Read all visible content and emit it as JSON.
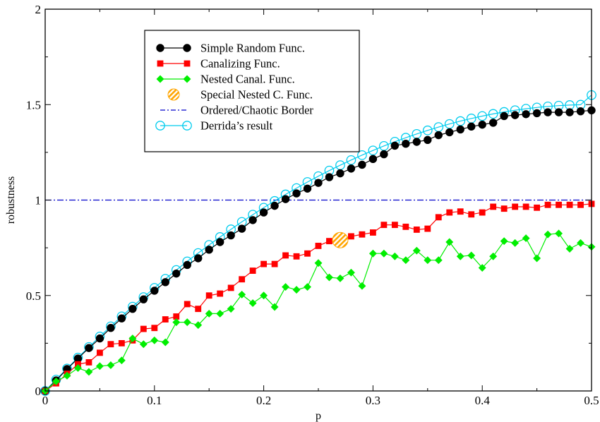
{
  "chart_data": {
    "type": "line",
    "title": "",
    "xlabel": "p",
    "ylabel": "robustness",
    "xlim": [
      0,
      0.5
    ],
    "ylim": [
      0,
      2
    ],
    "grid": false,
    "legend_position": "top-left",
    "x_ticks": [
      0,
      0.1,
      0.2,
      0.3,
      0.4,
      0.5
    ],
    "x_tick_labels": [
      "0",
      "0.1",
      "0.2",
      "0.3",
      "0.4",
      "0.5"
    ],
    "y_ticks": [
      0,
      0.5,
      1,
      1.5,
      2
    ],
    "y_tick_labels": [
      "0",
      "0.5",
      "1",
      "1.5",
      "2"
    ],
    "series": [
      {
        "name": "Simple Random Func.",
        "marker": "filled-circle",
        "color": "#000000",
        "x": [
          0,
          0.01,
          0.02,
          0.03,
          0.04,
          0.05,
          0.06,
          0.07,
          0.08,
          0.09,
          0.1,
          0.11,
          0.12,
          0.13,
          0.14,
          0.15,
          0.16,
          0.17,
          0.18,
          0.19,
          0.2,
          0.21,
          0.22,
          0.23,
          0.24,
          0.25,
          0.26,
          0.27,
          0.28,
          0.29,
          0.3,
          0.31,
          0.32,
          0.33,
          0.34,
          0.35,
          0.36,
          0.37,
          0.38,
          0.39,
          0.4,
          0.41,
          0.42,
          0.43,
          0.44,
          0.45,
          0.46,
          0.47,
          0.48,
          0.49,
          0.5
        ],
        "y": [
          0,
          0.055,
          0.115,
          0.17,
          0.225,
          0.275,
          0.33,
          0.38,
          0.43,
          0.48,
          0.525,
          0.57,
          0.615,
          0.66,
          0.695,
          0.74,
          0.78,
          0.815,
          0.85,
          0.895,
          0.935,
          0.97,
          1.005,
          1.035,
          1.06,
          1.09,
          1.12,
          1.14,
          1.165,
          1.185,
          1.215,
          1.24,
          1.285,
          1.295,
          1.305,
          1.315,
          1.34,
          1.355,
          1.37,
          1.385,
          1.395,
          1.405,
          1.44,
          1.445,
          1.45,
          1.455,
          1.46,
          1.46,
          1.46,
          1.465,
          1.47
        ]
      },
      {
        "name": "Canalizing Func.",
        "marker": "filled-square",
        "color": "#ff0000",
        "x": [
          0,
          0.01,
          0.02,
          0.03,
          0.04,
          0.05,
          0.06,
          0.07,
          0.08,
          0.09,
          0.1,
          0.11,
          0.12,
          0.13,
          0.14,
          0.15,
          0.16,
          0.17,
          0.18,
          0.19,
          0.2,
          0.21,
          0.22,
          0.23,
          0.24,
          0.25,
          0.26,
          0.27,
          0.28,
          0.29,
          0.3,
          0.31,
          0.32,
          0.33,
          0.34,
          0.35,
          0.36,
          0.37,
          0.38,
          0.39,
          0.4,
          0.41,
          0.42,
          0.43,
          0.44,
          0.45,
          0.46,
          0.47,
          0.48,
          0.49,
          0.5
        ],
        "y": [
          0,
          0.04,
          0.09,
          0.14,
          0.15,
          0.2,
          0.245,
          0.25,
          0.265,
          0.325,
          0.33,
          0.375,
          0.39,
          0.455,
          0.43,
          0.5,
          0.51,
          0.54,
          0.585,
          0.63,
          0.665,
          0.665,
          0.71,
          0.705,
          0.72,
          0.76,
          0.785,
          0.795,
          0.81,
          0.82,
          0.83,
          0.87,
          0.87,
          0.86,
          0.845,
          0.85,
          0.91,
          0.935,
          0.94,
          0.925,
          0.935,
          0.965,
          0.955,
          0.965,
          0.965,
          0.96,
          0.975,
          0.975,
          0.975,
          0.975,
          0.98
        ]
      },
      {
        "name": "Nested Canal. Func.",
        "marker": "filled-diamond",
        "color": "#00ee00",
        "x": [
          0,
          0.01,
          0.02,
          0.03,
          0.04,
          0.05,
          0.06,
          0.07,
          0.08,
          0.09,
          0.1,
          0.11,
          0.12,
          0.13,
          0.14,
          0.15,
          0.16,
          0.17,
          0.18,
          0.19,
          0.2,
          0.21,
          0.22,
          0.23,
          0.24,
          0.25,
          0.26,
          0.27,
          0.28,
          0.29,
          0.3,
          0.31,
          0.32,
          0.33,
          0.34,
          0.35,
          0.36,
          0.37,
          0.38,
          0.39,
          0.4,
          0.41,
          0.42,
          0.43,
          0.44,
          0.45,
          0.46,
          0.47,
          0.48,
          0.49,
          0.5
        ],
        "y": [
          0,
          0.05,
          0.08,
          0.12,
          0.1,
          0.13,
          0.135,
          0.16,
          0.275,
          0.245,
          0.265,
          0.255,
          0.36,
          0.36,
          0.345,
          0.405,
          0.405,
          0.43,
          0.505,
          0.46,
          0.5,
          0.44,
          0.545,
          0.53,
          0.545,
          0.67,
          0.595,
          0.59,
          0.62,
          0.55,
          0.72,
          0.72,
          0.705,
          0.685,
          0.735,
          0.685,
          0.685,
          0.78,
          0.705,
          0.71,
          0.645,
          0.705,
          0.785,
          0.775,
          0.8,
          0.695,
          0.82,
          0.825,
          0.745,
          0.775,
          0.755
        ]
      },
      {
        "name": "Special Nested C. Func.",
        "marker": "hatched-circle",
        "color": "#ffa500",
        "x": [
          0.27
        ],
        "y": [
          0.79
        ]
      },
      {
        "name": "Ordered/Chaotic Border",
        "marker": "none",
        "line_style": "dash-dot",
        "color": "#0000cc",
        "x": [
          0,
          0.5
        ],
        "y": [
          1,
          1
        ]
      },
      {
        "name": "Derrida’s result",
        "marker": "open-circle",
        "color": "#00ccee",
        "x": [
          0,
          0.01,
          0.02,
          0.03,
          0.04,
          0.05,
          0.06,
          0.07,
          0.08,
          0.09,
          0.1,
          0.11,
          0.12,
          0.13,
          0.14,
          0.15,
          0.16,
          0.17,
          0.18,
          0.19,
          0.2,
          0.21,
          0.22,
          0.23,
          0.24,
          0.25,
          0.26,
          0.27,
          0.28,
          0.29,
          0.3,
          0.31,
          0.32,
          0.33,
          0.34,
          0.35,
          0.36,
          0.37,
          0.38,
          0.39,
          0.4,
          0.41,
          0.42,
          0.43,
          0.44,
          0.45,
          0.46,
          0.47,
          0.48,
          0.49,
          0.5
        ],
        "y": [
          0,
          0.0594,
          0.1176,
          0.1746,
          0.2304,
          0.285,
          0.3384,
          0.3906,
          0.4416,
          0.4914,
          0.54,
          0.5874,
          0.6336,
          0.6786,
          0.7224,
          0.765,
          0.8064,
          0.8466,
          0.8856,
          0.9234,
          0.96,
          0.9954,
          1.0296,
          1.0626,
          1.0944,
          1.125,
          1.1544,
          1.1826,
          1.2096,
          1.2354,
          1.26,
          1.2834,
          1.3056,
          1.3266,
          1.3464,
          1.365,
          1.3824,
          1.3986,
          1.4136,
          1.4274,
          1.44,
          1.4514,
          1.4616,
          1.4706,
          1.4784,
          1.485,
          1.4904,
          1.4946,
          1.4976,
          1.4994,
          1.55
        ]
      }
    ]
  }
}
